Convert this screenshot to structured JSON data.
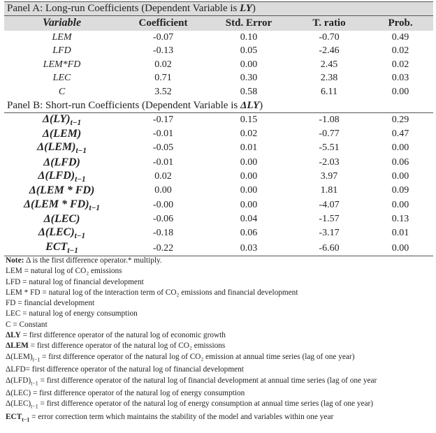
{
  "panel_a": {
    "title": [
      {
        "text": "Panel A: Long-run Coefficients (Dependent Variable is "
      },
      {
        "text": "LY",
        "style": "bi"
      },
      {
        "text": ")"
      }
    ],
    "header": [
      "Variable",
      "Coefficient",
      "Std. Error",
      "T. ratio",
      "Prob."
    ],
    "rows": [
      [
        {
          "text": "LEM"
        },
        "-0.07",
        "0.10",
        "-0.70",
        "0.49"
      ],
      [
        {
          "text": "LFD"
        },
        "-0.13",
        "0.05",
        "-2.46",
        "0.02"
      ],
      [
        {
          "text": "LEM*FD"
        },
        "0.02",
        "0.00",
        "2.45",
        "0.02"
      ],
      [
        {
          "text": "LEC"
        },
        "0.71",
        "0.30",
        "2.38",
        "0.03"
      ],
      [
        {
          "text": "C"
        },
        "3.52",
        "0.58",
        "6.11",
        "0.00"
      ]
    ]
  },
  "panel_b": {
    "title": [
      {
        "text": "Panel B: Short-run Coefficients (Dependent Variable is "
      },
      {
        "text": "ΔLY",
        "style": "bi"
      },
      {
        "text": ")"
      }
    ],
    "rows": [
      [
        {
          "text": "Δ(LY)",
          "sub": "t−1"
        },
        "-0.17",
        "0.15",
        "-1.08",
        "0.29"
      ],
      [
        {
          "text": "Δ(LEM)"
        },
        "-0.01",
        "0.02",
        "-0.77",
        "0.47"
      ],
      [
        {
          "text": "Δ(LEM)",
          "sub": "t−1"
        },
        "-0.05",
        "0.01",
        "-5.51",
        "0.00"
      ],
      [
        {
          "text": "Δ(LFD)"
        },
        "-0.01",
        "0.00",
        "-2.03",
        "0.06"
      ],
      [
        {
          "text": "Δ(LFD)",
          "sub": "t−1"
        },
        "0.02",
        "0.00",
        "3.97",
        "0.00"
      ],
      [
        {
          "text": "Δ(LEM * FD)"
        },
        "0.00",
        "0.00",
        "1.81",
        "0.09"
      ],
      [
        {
          "text": "Δ(LEM * FD)",
          "sub": "t−1"
        },
        "-0.00",
        "0.00",
        "-4.07",
        "0.00"
      ],
      [
        {
          "text": "Δ(LEC)"
        },
        "-0.06",
        "0.04",
        "-1.57",
        "0.13"
      ],
      [
        {
          "text": "Δ(LEC)",
          "sub": "t−1"
        },
        "-0.18",
        "0.06",
        "-3.17",
        "0.01"
      ],
      [
        {
          "text": "ECT",
          "sub": "t−1"
        },
        "-0.22",
        "0.03",
        "-6.60",
        "0.00"
      ]
    ]
  },
  "notes": [
    [
      {
        "text": "Note:",
        "style": "b"
      },
      {
        "text": " Δ is the first difference operator.* multiply."
      }
    ],
    [
      {
        "text": "LEM = natural log of CO₂ emissions"
      }
    ],
    [
      {
        "text": "LFD = natural log of financial development"
      }
    ],
    [
      {
        "text": "LEM * FD = natural log of the interaction term of CO₂ emissions and financial development"
      }
    ],
    [
      {
        "text": "FD = financial development"
      }
    ],
    [
      {
        "text": "LEC =  natural log of energy consumption"
      }
    ],
    [
      {
        "text": "C = Constant"
      }
    ],
    [
      {
        "text": "ΔLY",
        "style": "b"
      },
      {
        "text": " = first difference operator of the natural log of economic growth"
      }
    ],
    [
      {
        "text": "ΔLEM",
        "style": "b"
      },
      {
        "text": " = first difference operator of the natural log of CO₂ emissions"
      }
    ],
    [
      {
        "text": "Δ(LEM)"
      },
      {
        "text": "t−1",
        "style": "sub"
      },
      {
        "text": " = first difference operator of the natural log of CO₂ emission at annual time series (lag of one year)"
      }
    ],
    [
      {
        "text": "ΔLFD= first difference operator of the natural log of financial development"
      }
    ],
    [
      {
        "text": "Δ(LFD)"
      },
      {
        "text": "t−1",
        "style": "sub"
      },
      {
        "text": " = first difference operator of the natural log of financial development at annual time series (lag of one year"
      }
    ],
    [
      {
        "text": "Δ(LEC) = first difference operator of the natural log of energy consumption"
      }
    ],
    [
      {
        "text": "Δ(LEC)"
      },
      {
        "text": "t−1",
        "style": "sub"
      },
      {
        "text": " = first difference operator of the natural log of energy consumption at annual time series (lag of one year)"
      }
    ],
    [
      {
        "text": "ECT",
        "style": "b"
      },
      {
        "text": "t−1",
        "style": "bsub"
      },
      {
        "text": " = error correction term which maintains the stability of the model and variables within one year"
      }
    ]
  ]
}
